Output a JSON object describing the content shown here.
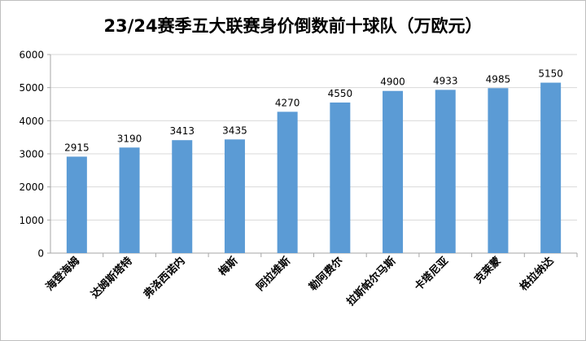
{
  "chart_data": {
    "type": "bar",
    "title": "23/24赛季五大联赛身价倒数前十球队（万欧元）",
    "categories": [
      "海登海姆",
      "达姆斯塔特",
      "弗洛西诺内",
      "梅斯",
      "阿拉维斯",
      "勒阿费尔",
      "拉斯帕尔马斯",
      "卡塔尼亚",
      "克莱蒙",
      "格拉纳达"
    ],
    "values": [
      2915,
      3190,
      3413,
      3435,
      4270,
      4550,
      4900,
      4933,
      4985,
      5150
    ],
    "value_labels": [
      "2915",
      "3190",
      "3413",
      "3435",
      "4270",
      "4550",
      "4900",
      "4933",
      "4985",
      "5150"
    ],
    "y_ticks": [
      "0",
      "1000",
      "2000",
      "3000",
      "4000",
      "5000",
      "6000"
    ],
    "ylim": [
      0,
      6000
    ],
    "xlabel": "",
    "ylabel": "",
    "grid": true,
    "legend": "none",
    "colors": {
      "bar": "#5b9bd5",
      "grid": "#d9d9d9",
      "axis": "#a6a6a6",
      "text": "#000000"
    }
  }
}
